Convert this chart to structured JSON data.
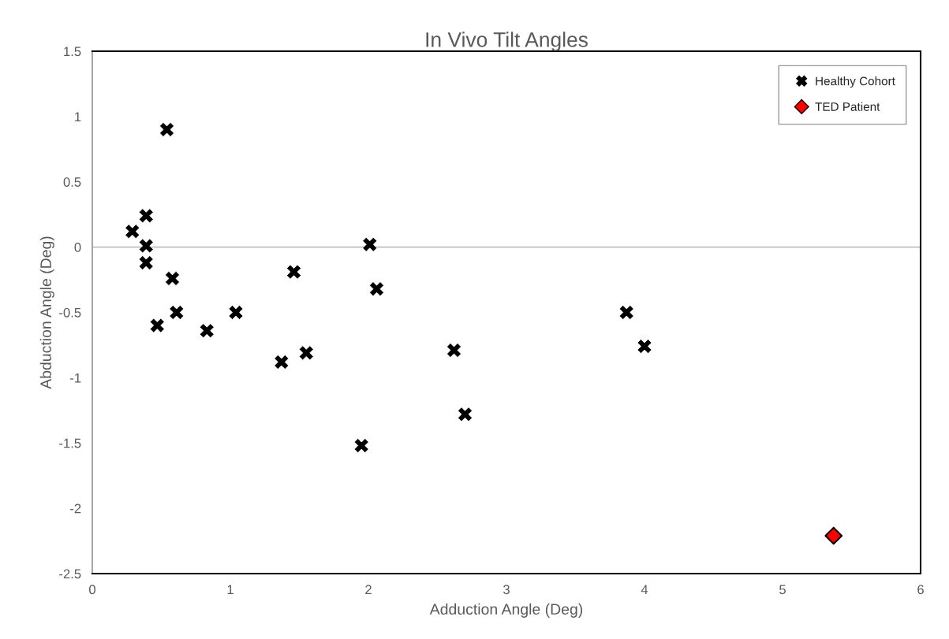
{
  "chart_data": {
    "type": "scatter",
    "title": "In Vivo Tilt Angles",
    "xlabel": "Adduction Angle (Deg)",
    "ylabel": "Abduction Angle (Deg)",
    "series": [
      {
        "name": "Healthy Cohort",
        "color": "#000000",
        "marker": "cross",
        "x": [
          0.29,
          0.39,
          0.39,
          0.39,
          0.54,
          0.58,
          0.61,
          0.47,
          0.83,
          1.04,
          1.46,
          2.01,
          2.06,
          1.37,
          1.55,
          1.95,
          2.62,
          2.7,
          3.87,
          4.0
        ],
        "values": [
          0.12,
          0.24,
          0.01,
          -0.12,
          0.9,
          -0.24,
          -0.5,
          -0.6,
          -0.64,
          -0.5,
          -0.19,
          0.02,
          -0.32,
          -0.88,
          -0.81,
          -1.52,
          -0.79,
          -1.28,
          -0.5,
          -0.76
        ]
      },
      {
        "name": "TED Patient",
        "color": "#ff0000",
        "marker": "diamond",
        "x": [
          5.37
        ],
        "values": [
          -2.21
        ]
      }
    ],
    "xlim": [
      0,
      6
    ],
    "xticks": [
      0,
      1,
      2,
      3,
      4,
      5,
      6
    ],
    "ylim": [
      -2.5,
      1.5
    ],
    "yticks": [
      -2.5,
      -2,
      -1.5,
      -1,
      -0.5,
      0,
      0.5,
      1,
      1.5
    ],
    "ref_lines": [
      {
        "axis": "y",
        "value": 0,
        "color": "#bfbfbf"
      }
    ],
    "grid": false,
    "legend": "top right"
  }
}
